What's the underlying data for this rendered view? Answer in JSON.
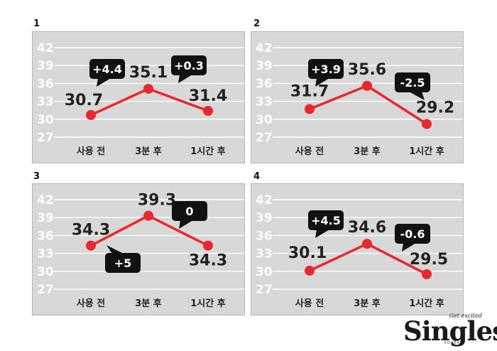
{
  "chart_data": [
    {
      "type": "line",
      "panel_number": "1",
      "categories": [
        "사용 전",
        "3분 후",
        "1시간 후"
      ],
      "values": [
        30.7,
        35.1,
        31.4
      ],
      "value_labels": [
        "30.7",
        "35.1",
        "31.4"
      ],
      "change_labels": [
        "+4.4",
        "+0.3"
      ],
      "y_ticks": [
        "42",
        "39",
        "36",
        "33",
        "30",
        "27"
      ],
      "ylim": [
        27,
        42
      ],
      "line_color": "#e8282e",
      "grid": true
    },
    {
      "type": "line",
      "panel_number": "2",
      "categories": [
        "사용 전",
        "3분 후",
        "1시간 후"
      ],
      "values": [
        31.7,
        35.6,
        29.2
      ],
      "value_labels": [
        "31.7",
        "35.6",
        "29.2"
      ],
      "change_labels": [
        "+3.9",
        "-2.5"
      ],
      "y_ticks": [
        "42",
        "39",
        "36",
        "33",
        "30",
        "27"
      ],
      "ylim": [
        27,
        42
      ],
      "line_color": "#e8282e",
      "grid": true
    },
    {
      "type": "line",
      "panel_number": "3",
      "categories": [
        "사용 전",
        "3분 후",
        "1시간 후"
      ],
      "values": [
        34.3,
        39.3,
        34.3
      ],
      "value_labels": [
        "34.3",
        "39.3",
        "34.3"
      ],
      "change_labels": [
        "+5",
        "0"
      ],
      "y_ticks": [
        "42",
        "39",
        "36",
        "33",
        "30",
        "27"
      ],
      "ylim": [
        27,
        42
      ],
      "line_color": "#e8282e",
      "grid": true
    },
    {
      "type": "line",
      "panel_number": "4",
      "categories": [
        "사용 전",
        "3분 후",
        "1시간 후"
      ],
      "values": [
        30.1,
        34.6,
        29.5
      ],
      "value_labels": [
        "30.1",
        "34.6",
        "29.5"
      ],
      "change_labels": [
        "+4.5",
        "-0.6"
      ],
      "y_ticks": [
        "42",
        "39",
        "36",
        "33",
        "30",
        "27"
      ],
      "ylim": [
        27,
        42
      ],
      "line_color": "#e8282e",
      "grid": true
    }
  ],
  "logo": {
    "tagline": "Get excited",
    "word": "Singles",
    "sub": "KOREA"
  }
}
